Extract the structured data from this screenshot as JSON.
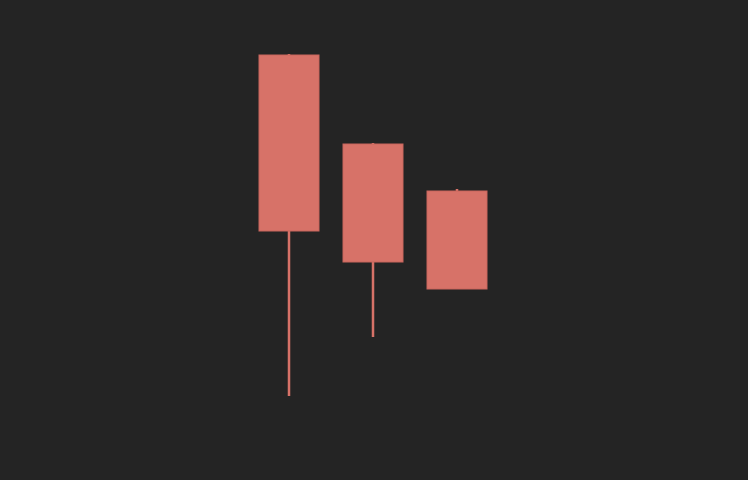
{
  "chart_data": {
    "type": "candlestick",
    "colors": {
      "background": "#242424",
      "bearish": "#d77268"
    },
    "grid": false,
    "legend": "none",
    "ylim": [
      0,
      480
    ],
    "candles": [
      {
        "open": 425,
        "close": 249,
        "high": 426,
        "low": 84
      },
      {
        "open": 336,
        "close": 218,
        "high": 337,
        "low": 143
      },
      {
        "open": 289,
        "close": 191,
        "high": 291,
        "low": 191
      }
    ]
  }
}
